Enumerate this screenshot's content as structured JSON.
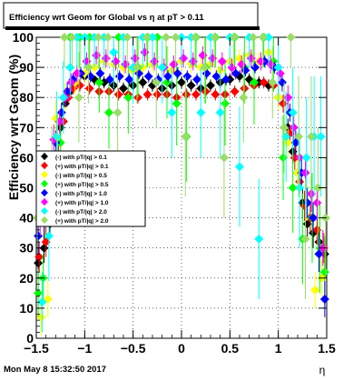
{
  "title": "Efficiency wrt Geom for Global vs   η at pT > 0.11",
  "timestamp": "Mon May  8 15:32:50 2017",
  "chart_data": {
    "type": "scatter",
    "title": "Efficiency wrt Geom for Global vs   η at pT > 0.11",
    "xlabel": "η",
    "ylabel": "Efficiency wrt Geom (%)",
    "xlim": [
      -1.5,
      1.5
    ],
    "ylim": [
      0,
      100
    ],
    "x_ticks": [
      "−1.5",
      "−1",
      "−0.5",
      "0",
      "0.5",
      "1",
      "1.5"
    ],
    "x_tick_values": [
      -1.5,
      -1,
      -0.5,
      0,
      0.5,
      1,
      1.5
    ],
    "y_ticks": [
      "0",
      "10",
      "20",
      "30",
      "40",
      "50",
      "60",
      "70",
      "80",
      "90",
      "100"
    ],
    "y_tick_values": [
      0,
      10,
      20,
      30,
      40,
      50,
      60,
      70,
      80,
      90,
      100
    ],
    "grid": true,
    "legend_placement": "left",
    "series": [
      {
        "name": "(-) with pT/|q| > 0.1",
        "color": "#000000",
        "x": [
          -1.48,
          -1.42,
          -1.36,
          -1.3,
          -1.25,
          -1.2,
          -1.15,
          -1.1,
          -1.0,
          -0.9,
          -0.8,
          -0.7,
          -0.6,
          -0.5,
          -0.4,
          -0.3,
          -0.2,
          -0.1,
          0.0,
          0.1,
          0.2,
          0.3,
          0.4,
          0.5,
          0.6,
          0.7,
          0.8,
          0.9,
          1.0,
          1.1,
          1.15,
          1.2,
          1.25,
          1.3,
          1.36,
          1.42,
          1.48
        ],
        "y": [
          25,
          30,
          38,
          55,
          70,
          78,
          82,
          85,
          87,
          86,
          85,
          84,
          83,
          84,
          85,
          84,
          83,
          84,
          85,
          84,
          83,
          84,
          85,
          86,
          87,
          86,
          85,
          84,
          80,
          70,
          62,
          55,
          45,
          38,
          35,
          32,
          28
        ],
        "err": [
          5,
          5,
          5,
          4,
          3,
          3,
          2,
          2,
          2,
          2,
          2,
          2,
          2,
          2,
          2,
          2,
          2,
          2,
          2,
          2,
          2,
          2,
          2,
          2,
          2,
          2,
          2,
          2,
          3,
          3,
          4,
          4,
          5,
          5,
          5,
          5,
          5
        ]
      },
      {
        "name": "(+) with pT/|q| > 0.1",
        "color": "#ff0000",
        "x": [
          -1.47,
          -1.4,
          -1.33,
          -1.27,
          -1.22,
          -1.17,
          -1.12,
          -1.05,
          -0.95,
          -0.85,
          -0.75,
          -0.65,
          -0.55,
          -0.45,
          -0.35,
          -0.25,
          -0.15,
          -0.05,
          0.05,
          0.15,
          0.25,
          0.35,
          0.45,
          0.55,
          0.65,
          0.75,
          0.85,
          0.95,
          1.05,
          1.12,
          1.17,
          1.22,
          1.27,
          1.33,
          1.4,
          1.47
        ],
        "y": [
          27,
          32,
          45,
          60,
          72,
          80,
          83,
          84,
          83,
          82,
          82,
          81,
          81,
          80,
          81,
          81,
          81,
          80,
          81,
          81,
          82,
          81,
          81,
          82,
          83,
          84,
          85,
          84,
          78,
          68,
          60,
          52,
          44,
          40,
          36,
          30
        ],
        "err": [
          5,
          5,
          4,
          4,
          3,
          2,
          2,
          2,
          2,
          2,
          2,
          2,
          2,
          2,
          2,
          2,
          2,
          2,
          2,
          2,
          2,
          2,
          2,
          2,
          2,
          2,
          2,
          2,
          3,
          3,
          4,
          4,
          5,
          5,
          5,
          5
        ]
      },
      {
        "name": "(-) with pT/|q| > 0.5",
        "color": "#ffff00",
        "x": [
          -1.45,
          -1.38,
          -1.3,
          -1.2,
          -1.1,
          -1.0,
          -0.9,
          -0.8,
          -0.7,
          -0.6,
          -0.5,
          -0.4,
          -0.3,
          -0.2,
          -0.1,
          0.0,
          0.1,
          0.2,
          0.3,
          0.4,
          0.5,
          0.6,
          0.7,
          0.8,
          0.9,
          1.0,
          1.1,
          1.2,
          1.3,
          1.38,
          1.45
        ],
        "y": [
          7,
          13,
          73,
          80,
          85,
          88,
          90,
          92,
          91,
          90,
          89,
          90,
          91,
          90,
          89,
          92,
          91,
          90,
          91,
          89,
          92,
          93,
          94,
          92,
          95,
          80,
          65,
          55,
          45,
          16,
          20
        ],
        "err": [
          6,
          6,
          6,
          5,
          4,
          3,
          3,
          3,
          3,
          3,
          3,
          3,
          3,
          3,
          3,
          3,
          3,
          3,
          3,
          3,
          3,
          3,
          3,
          3,
          3,
          4,
          5,
          6,
          6,
          6,
          6
        ]
      },
      {
        "name": "(+) with pT/|q| > 0.5",
        "color": "#00ff00",
        "x": [
          -1.48,
          -1.43,
          -1.35,
          -1.25,
          -1.15,
          -1.05,
          -0.95,
          -0.85,
          -0.75,
          -0.65,
          -0.55,
          -0.45,
          -0.35,
          -0.25,
          -0.15,
          -0.05,
          0.05,
          0.15,
          0.25,
          0.35,
          0.45,
          0.55,
          0.65,
          0.75,
          0.85,
          0.95,
          1.05,
          1.15,
          1.25,
          1.35,
          1.43,
          1.48
        ],
        "y": [
          15,
          20,
          50,
          65,
          100,
          100,
          100,
          85,
          75,
          100,
          80,
          90,
          100,
          100,
          85,
          78,
          67,
          100,
          90,
          100,
          78,
          100,
          90,
          85,
          100,
          92,
          60,
          50,
          33,
          40,
          30,
          22
        ],
        "err": [
          8,
          8,
          12,
          10,
          10,
          10,
          10,
          10,
          12,
          10,
          12,
          10,
          10,
          10,
          12,
          14,
          15,
          10,
          12,
          10,
          14,
          10,
          12,
          14,
          10,
          10,
          14,
          15,
          15,
          15,
          15,
          12
        ]
      },
      {
        "name": "(-) with pT/|q| > 1.0",
        "color": "#0000ff",
        "x": [
          -1.48,
          -1.42,
          -1.36,
          -1.3,
          -1.24,
          -1.18,
          -1.12,
          -1.04,
          -0.94,
          -0.84,
          -0.74,
          -0.64,
          -0.54,
          -0.44,
          -0.34,
          -0.24,
          -0.14,
          -0.04,
          0.06,
          0.16,
          0.26,
          0.36,
          0.46,
          0.56,
          0.66,
          0.76,
          0.86,
          0.96,
          1.04,
          1.12,
          1.18,
          1.24,
          1.3,
          1.36,
          1.42,
          1.48
        ],
        "y": [
          34,
          40,
          50,
          65,
          75,
          82,
          86,
          88,
          87,
          88,
          86,
          87,
          86,
          88,
          87,
          86,
          87,
          88,
          87,
          86,
          88,
          87,
          86,
          88,
          89,
          90,
          92,
          90,
          85,
          75,
          65,
          55,
          45,
          40,
          28,
          13
        ],
        "err": [
          6,
          5,
          5,
          4,
          3,
          3,
          2,
          2,
          2,
          2,
          2,
          2,
          2,
          2,
          2,
          2,
          2,
          2,
          2,
          2,
          2,
          2,
          2,
          2,
          2,
          2,
          2,
          2,
          3,
          3,
          4,
          5,
          5,
          5,
          6,
          6
        ]
      },
      {
        "name": "(+) with pT/|q| > 1.0",
        "color": "#ff00ff",
        "x": [
          -1.46,
          -1.39,
          -1.32,
          -1.26,
          -1.2,
          -1.14,
          -1.08,
          -0.98,
          -0.88,
          -0.78,
          -0.68,
          -0.58,
          -0.48,
          -0.38,
          -0.28,
          -0.18,
          -0.08,
          0.02,
          0.12,
          0.22,
          0.32,
          0.42,
          0.52,
          0.62,
          0.72,
          0.82,
          0.92,
          1.02,
          1.1,
          1.16,
          1.22,
          1.28,
          1.34,
          1.4,
          1.46
        ],
        "y": [
          40,
          47,
          66,
          72,
          80,
          85,
          88,
          92,
          94,
          93,
          92,
          91,
          93,
          95,
          92,
          90,
          91,
          93,
          92,
          94,
          93,
          92,
          90,
          91,
          93,
          92,
          91,
          88,
          80,
          70,
          60,
          55,
          48,
          45,
          30
        ],
        "err": [
          6,
          5,
          5,
          4,
          3,
          3,
          3,
          3,
          3,
          3,
          3,
          3,
          3,
          3,
          3,
          3,
          3,
          3,
          3,
          3,
          3,
          3,
          3,
          3,
          3,
          3,
          3,
          3,
          4,
          4,
          5,
          5,
          6,
          6,
          6
        ]
      },
      {
        "name": "(-) with pT/|q| > 2.0",
        "color": "#00ffff",
        "x": [
          -1.44,
          -1.37,
          -1.29,
          -1.22,
          -1.15,
          -1.08,
          -1.0,
          -0.9,
          -0.8,
          -0.7,
          -0.6,
          -0.5,
          -0.4,
          -0.3,
          -0.2,
          -0.1,
          0.0,
          0.1,
          0.2,
          0.3,
          0.4,
          0.5,
          0.6,
          0.7,
          0.8,
          0.9,
          1.0,
          1.08,
          1.15,
          1.22,
          1.29,
          1.37,
          1.44
        ],
        "y": [
          12,
          34,
          67,
          80,
          90,
          100,
          100,
          100,
          100,
          95,
          100,
          90,
          100,
          100,
          90,
          75,
          100,
          100,
          75,
          100,
          75,
          100,
          57,
          100,
          33,
          100,
          90,
          67,
          75,
          50,
          60,
          67,
          67
        ],
        "err": [
          10,
          15,
          15,
          12,
          10,
          10,
          10,
          10,
          10,
          12,
          10,
          12,
          10,
          10,
          12,
          15,
          10,
          10,
          15,
          10,
          15,
          10,
          20,
          10,
          20,
          10,
          12,
          15,
          15,
          20,
          20,
          20,
          20
        ]
      },
      {
        "name": "(+) with pT/|q| > 2.0",
        "color": "#99dd66",
        "x": [
          -1.49,
          -1.41,
          -1.34,
          -1.28,
          -1.21,
          -1.13,
          -1.06,
          -0.96,
          -0.86,
          -0.76,
          -0.66,
          -0.56,
          -0.46,
          -0.36,
          -0.26,
          -0.16,
          -0.06,
          0.04,
          0.14,
          0.24,
          0.34,
          0.44,
          0.54,
          0.64,
          0.74,
          0.84,
          0.94,
          1.06,
          1.13,
          1.21,
          1.28,
          1.34,
          1.41,
          1.49
        ],
        "y": [
          40,
          45,
          55,
          60,
          100,
          100,
          80,
          90,
          100,
          100,
          75,
          100,
          90,
          100,
          85,
          100,
          100,
          67,
          100,
          90,
          100,
          60,
          100,
          80,
          100,
          100,
          85,
          70,
          100,
          67,
          33,
          67,
          50,
          40
        ],
        "err": [
          12,
          12,
          15,
          15,
          10,
          10,
          15,
          12,
          10,
          10,
          15,
          10,
          12,
          10,
          15,
          10,
          10,
          20,
          10,
          12,
          10,
          20,
          10,
          15,
          10,
          10,
          12,
          15,
          10,
          20,
          20,
          20,
          20,
          20
        ]
      }
    ]
  }
}
